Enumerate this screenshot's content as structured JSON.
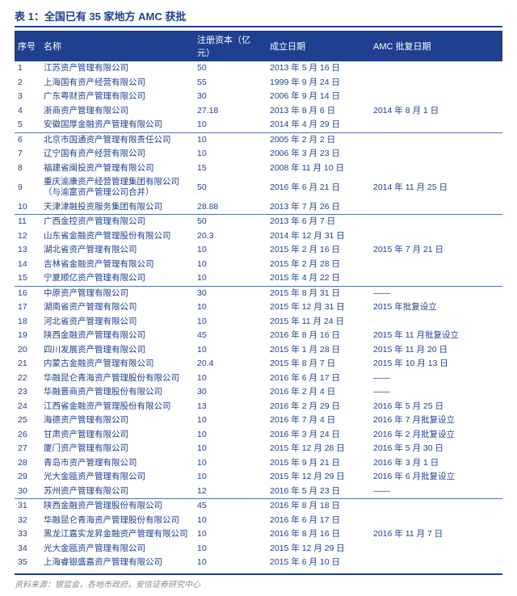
{
  "title": "表 1：全国已有 35 家地方 AMC 获批",
  "columns": [
    "序号",
    "名称",
    "注册资本（亿元）",
    "成立日期",
    "AMC 批复日期"
  ],
  "source": "资料来源：银监会，各地市政府，安信证券研究中心",
  "rows": [
    {
      "idx": "1",
      "name": "江苏资产管理有限公司",
      "cap": "50",
      "date": "2013 年 5 月 16 日",
      "amc": null,
      "sep": false
    },
    {
      "idx": "2",
      "name": "上海国有资产经营有限公司",
      "cap": "55",
      "date": "1999 年 9 月 24 日",
      "amc": null,
      "sep": false
    },
    {
      "idx": "3",
      "name": "广东粤财资产管理有限公司",
      "cap": "30",
      "date": "2006 年 9 月 14 日",
      "amc": "2014 年 8 月 1 日",
      "amcRowspan": 3,
      "sep": false
    },
    {
      "idx": "4",
      "name": "浙商资产管理有限公司",
      "cap": "27.18",
      "date": "2013 年 8 月 6 日",
      "amc": null,
      "sep": false
    },
    {
      "idx": "5",
      "name": "安徽国厚金融资产管理有限公司",
      "cap": "10",
      "date": "2014 年 4 月 29 日",
      "amc": null,
      "sep": false
    },
    {
      "idx": "6",
      "name": "北京市国通资产管理有限责任公司",
      "cap": "10",
      "date": "2005 年 2 月 2 日",
      "amc": null,
      "sep": true
    },
    {
      "idx": "7",
      "name": "辽宁国有资产经营有限公司",
      "cap": "10",
      "date": "2006 年 3 月 23 日",
      "amc": null,
      "sep": false
    },
    {
      "idx": "8",
      "name": "福建省闽投资产管理有限公司",
      "cap": "15",
      "date": "2008 年 11 月 10 日",
      "amc": "2014 年 11 月 25 日",
      "amcRowspan": 3,
      "sep": false
    },
    {
      "idx": "9",
      "name": "重庆渝康资产经营管理集团有限公司\n（与渝富资产管理公司合并）",
      "cap": "50",
      "date": "2016 年 6 月 21 日",
      "amc": null,
      "sep": false
    },
    {
      "idx": "10",
      "name": "天津津融投资服务集团有限公司",
      "cap": "28.88",
      "date": "2013 年 7 月 26 日",
      "amc": null,
      "sep": false
    },
    {
      "idx": "11",
      "name": "广西金控资产管理有限公司",
      "cap": "50",
      "date": "2013 年 6 月 7 日",
      "amc": null,
      "sep": true
    },
    {
      "idx": "12",
      "name": "山东省金融资产管理股份有限公司",
      "cap": "20.3",
      "date": "2014 年 12 月 31 日",
      "amc": null,
      "sep": false
    },
    {
      "idx": "13",
      "name": "湖北省资产管理有限公司",
      "cap": "10",
      "date": "2015 年 2 月 16 日",
      "amc": "2015 年 7 月 21 日",
      "amcRowspan": 1,
      "sep": false
    },
    {
      "idx": "14",
      "name": "吉林省金融资产管理有限公司",
      "cap": "10",
      "date": "2015 年 2 月 28 日",
      "amc": null,
      "sep": false
    },
    {
      "idx": "15",
      "name": "宁夏顺亿资产管理有限公司",
      "cap": "10",
      "date": "2015 年 4 月 22 日",
      "amc": null,
      "sep": false
    },
    {
      "idx": "16",
      "name": "中原资产管理有限公司",
      "cap": "30",
      "date": "2015 年 8 月 31 日",
      "amc": "——",
      "amcRowspan": 1,
      "sep": true
    },
    {
      "idx": "17",
      "name": "湖南省资产管理有限公司",
      "cap": "10",
      "date": "2015 年 12 月 31 日",
      "amc": "2015 年批复设立",
      "amcRowspan": 1,
      "sep": false
    },
    {
      "idx": "18",
      "name": "河北省资产管理有限公司",
      "cap": "10",
      "date": "2015 年 11 月 24 日",
      "amc": null,
      "sep": false
    },
    {
      "idx": "19",
      "name": "陕西金融资产管理有限公司",
      "cap": "45",
      "date": "2016 年 8 月 16 日",
      "amc": "2015 年 11 月批复设立",
      "amcRowspan": 1,
      "sep": false
    },
    {
      "idx": "20",
      "name": "四川发展资产管理有限公司",
      "cap": "10",
      "date": "2015 年 1 月 28 日",
      "amc": "2015 年 11 月 20 日",
      "amcRowspan": 1,
      "sep": false
    },
    {
      "idx": "21",
      "name": "内蒙古金融资产管理有限公司",
      "cap": "20.4",
      "date": "2015 年 8 月 7 日",
      "amc": "2015 年 10 月 13 日",
      "amcRowspan": 1,
      "sep": false
    },
    {
      "idx": "22",
      "name": "华融昆仑青海资产管理股份有限公司",
      "cap": "10",
      "date": "2016 年 6 月 17 日",
      "amc": "——",
      "amcRowspan": 1,
      "sep": false
    },
    {
      "idx": "23",
      "name": "华融晋商资产管理股份有限公司",
      "cap": "30",
      "date": "2016 年 2 月 4 日",
      "amc": "——",
      "amcRowspan": 1,
      "sep": false
    },
    {
      "idx": "24",
      "name": "江西省金融资产管理股份有限公司",
      "cap": "13",
      "date": "2016 年 2 月 29 日",
      "amc": "2016 年 5 月 25 日",
      "amcRowspan": 1,
      "sep": false
    },
    {
      "idx": "25",
      "name": "海德资产管理有限公司",
      "cap": "10",
      "date": "2016 年 7 月 4 日",
      "amc": "2016 年 7 月批复设立",
      "amcRowspan": 1,
      "sep": false
    },
    {
      "idx": "26",
      "name": "甘肃资产管理有限公司",
      "cap": "10",
      "date": "2016 年 3 月 24 日",
      "amc": "2016 年 2 月批复设立",
      "amcRowspan": 1,
      "sep": false
    },
    {
      "idx": "27",
      "name": "厦门资产管理有限公司",
      "cap": "10",
      "date": "2015 年 12 月 28 日",
      "amc": "2016 年 5 月 30 日",
      "amcRowspan": 1,
      "sep": false
    },
    {
      "idx": "28",
      "name": "青岛市资产管理有限公司",
      "cap": "10",
      "date": "2015 年 9 月 21 日",
      "amc": "2016 年 3 月 1 日",
      "amcRowspan": 1,
      "sep": false
    },
    {
      "idx": "29",
      "name": "光大金瓯资产管理有限公司",
      "cap": "10",
      "date": "2015 年 12 月 29 日",
      "amc": "2016 年 6 月批复设立",
      "amcRowspan": 1,
      "sep": false
    },
    {
      "idx": "30",
      "name": "苏州资产管理有限公司",
      "cap": "12",
      "date": "2016 年 5 月 23 日",
      "amc": "——",
      "amcRowspan": 1,
      "sep": false
    },
    {
      "idx": "31",
      "name": "陕西金融资产管理股份有限公司",
      "cap": "45",
      "date": "2016 年 8 月 18 日",
      "amc": null,
      "sep": true
    },
    {
      "idx": "32",
      "name": "华融昆仑青海资产管理股份有限公司",
      "cap": "10",
      "date": "2016 年 6 月 17 日",
      "amc": null,
      "sep": false
    },
    {
      "idx": "33",
      "name": "黑龙江嘉实龙昇金融资产管理有限公司",
      "cap": "10",
      "date": "2016 年 8 月 16 日",
      "amc": "2016 年 11 月 7 日",
      "amcRowspan": 1,
      "sep": false
    },
    {
      "idx": "34",
      "name": "光大金瓯资产管理有限公司",
      "cap": "10",
      "date": "2015 年 12 月 29 日",
      "amc": null,
      "sep": false
    },
    {
      "idx": "35",
      "name": "上海睿银盛嘉资产管理有限公司",
      "cap": "10",
      "date": "2015 年 6 月 10 日",
      "amc": null,
      "sep": false
    }
  ]
}
